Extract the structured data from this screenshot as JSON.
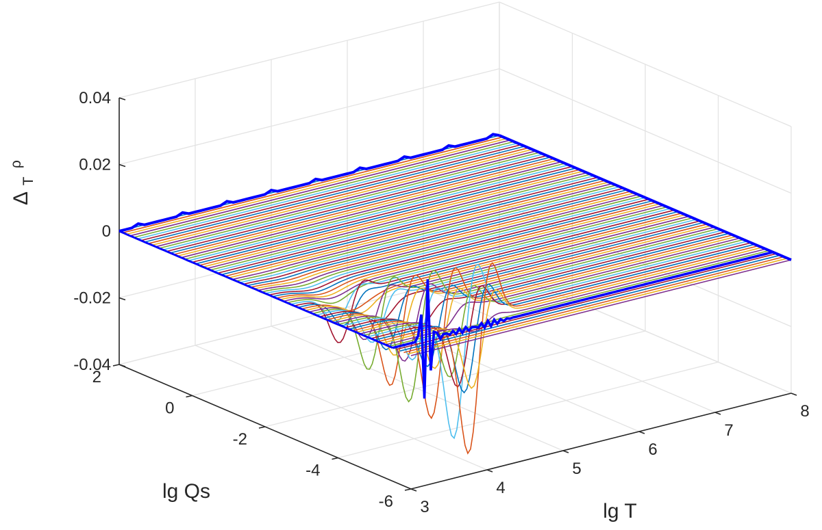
{
  "chart_data": {
    "type": "line",
    "subtype": "3d-waterfall",
    "title": "",
    "xlabel": "lg T",
    "ylabel": "lg Qs",
    "zlabel_main": "Δ",
    "zlabel_sub1": "T",
    "zlabel_sub2": "ρ",
    "xlim": [
      3,
      8
    ],
    "ylim": [
      -6,
      2
    ],
    "zlim": [
      -0.04,
      0.04
    ],
    "x_ticks": [
      "3",
      "4",
      "5",
      "6",
      "7",
      "8"
    ],
    "y_ticks": [
      "-6",
      "-4",
      "-2",
      "0",
      "2"
    ],
    "z_ticks": [
      "-0.04",
      "-0.02",
      "0",
      "0.02",
      "0.04"
    ],
    "grid": true,
    "line_sweep": "lg Qs from 2 to -6 at step 0.1 (81 curves), each plotted versus lg T from 3 to 8",
    "line_colors": [
      "#0072bd",
      "#d95319",
      "#edb120",
      "#7e2f8e",
      "#77ac30",
      "#4dbeee",
      "#a2142f"
    ],
    "feature_curves": [
      {
        "lgQs": -2.8,
        "dip_lgT": 3.6,
        "dip_value": -0.012
      },
      {
        "lgQs": -3.3,
        "dip_lgT": 3.75,
        "dip_value": -0.018
      },
      {
        "lgQs": -3.7,
        "dip_lgT": 3.85,
        "dip_value": -0.022
      },
      {
        "lgQs": -4.0,
        "dip_lgT": 3.95,
        "dip_value": -0.027
      },
      {
        "lgQs": -4.4,
        "dip_lgT": 4.05,
        "dip_value": -0.032
      },
      {
        "lgQs": -4.8,
        "dip_lgT": 4.15,
        "dip_value": -0.038
      },
      {
        "lgQs": -5.1,
        "dip_lgT": 4.2,
        "dip_value": -0.042
      }
    ],
    "highlight_series": [
      {
        "name": "",
        "color": "#0000ff",
        "role": "lg Qs = 2 edge",
        "lgQs": 2
      },
      {
        "name": "",
        "color": "#0000ff",
        "role": "lg T = 3 edge"
      },
      {
        "name": "",
        "color": "#0000ff",
        "role": "lg T = 8 edge"
      }
    ]
  }
}
